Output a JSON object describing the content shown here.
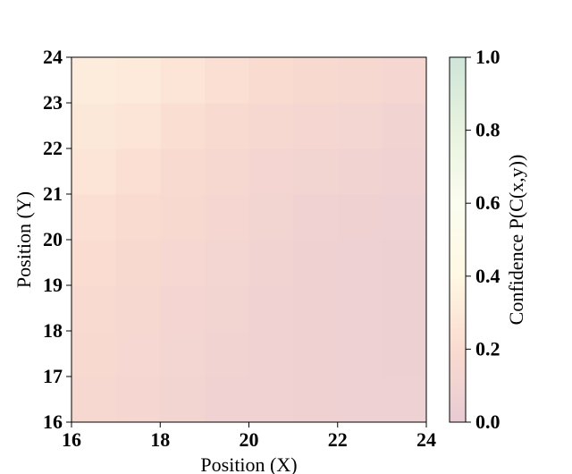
{
  "chart_data": {
    "type": "heatmap",
    "title": "",
    "xlabel": "Position (X)",
    "ylabel": "Position (Y)",
    "colorbar_label": "Confidence P(C(x,y))",
    "xlim": [
      16,
      24
    ],
    "ylim": [
      16,
      24
    ],
    "x_ticks": [
      "16",
      "18",
      "20",
      "22",
      "24"
    ],
    "y_ticks": [
      "16",
      "17",
      "18",
      "19",
      "20",
      "21",
      "22",
      "23",
      "24"
    ],
    "colorbar_ticks": [
      "0.0",
      "0.2",
      "0.4",
      "0.6",
      "0.8",
      "1.0"
    ],
    "clim": [
      0,
      1
    ],
    "colormap": [
      {
        "v": 0.0,
        "color": "#e8cbd3"
      },
      {
        "v": 0.2,
        "color": "#fadbd0"
      },
      {
        "v": 0.4,
        "color": "#fff8e3"
      },
      {
        "v": 0.6,
        "color": "#fbfdf0"
      },
      {
        "v": 0.8,
        "color": "#e8f3df"
      },
      {
        "v": 1.0,
        "color": "#cfe5d8"
      }
    ],
    "x_centers": [
      16.5,
      17.5,
      18.5,
      19.5,
      20.5,
      21.5,
      22.5,
      23.5
    ],
    "y_centers": [
      16.5,
      17.5,
      18.5,
      19.5,
      20.5,
      21.5,
      22.5,
      23.5
    ],
    "z": [
      [
        0.16,
        0.14,
        0.11,
        0.09,
        0.09,
        0.08,
        0.07,
        0.07
      ],
      [
        0.17,
        0.15,
        0.12,
        0.1,
        0.09,
        0.08,
        0.07,
        0.06
      ],
      [
        0.19,
        0.16,
        0.13,
        0.11,
        0.09,
        0.08,
        0.07,
        0.06
      ],
      [
        0.21,
        0.18,
        0.15,
        0.12,
        0.1,
        0.08,
        0.07,
        0.06
      ],
      [
        0.23,
        0.2,
        0.17,
        0.14,
        0.11,
        0.09,
        0.08,
        0.07
      ],
      [
        0.26,
        0.23,
        0.19,
        0.16,
        0.13,
        0.11,
        0.1,
        0.09
      ],
      [
        0.29,
        0.26,
        0.22,
        0.19,
        0.16,
        0.14,
        0.12,
        0.1
      ],
      [
        0.32,
        0.3,
        0.26,
        0.23,
        0.2,
        0.18,
        0.16,
        0.14
      ]
    ]
  }
}
